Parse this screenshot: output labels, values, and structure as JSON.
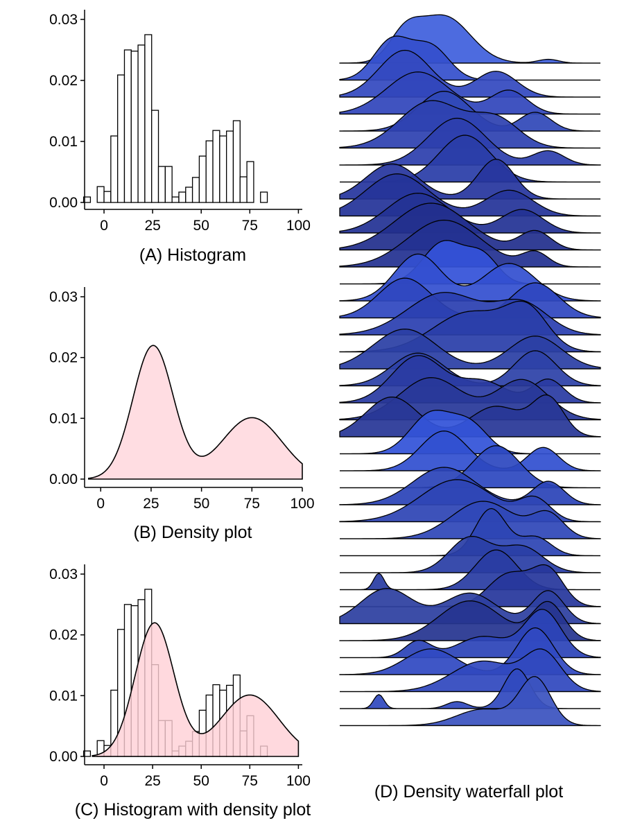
{
  "chart_data": [
    {
      "type": "bar",
      "title": "(A) Histogram",
      "xlabel": "",
      "ylabel": "",
      "xlim": [
        -10,
        102
      ],
      "ylim": [
        0,
        0.03
      ],
      "x_ticks": [
        0,
        25,
        50,
        75,
        100
      ],
      "y_ticks": [
        0.0,
        0.01,
        0.02,
        0.03
      ],
      "x_tick_labels": [
        "0",
        "25",
        "50",
        "75",
        "100"
      ],
      "y_tick_labels": [
        "0.00",
        "0.01",
        "0.02",
        "0.03"
      ],
      "bin_width": 3.5,
      "bin_start": -10.5,
      "values": [
        0.0009,
        0,
        0.0026,
        0.0018,
        0.0109,
        0.0209,
        0.025,
        0.0248,
        0.0258,
        0.0275,
        0.0151,
        0.0059,
        0.0059,
        0.0009,
        0.0017,
        0.0025,
        0.0041,
        0.0076,
        0.0101,
        0.0118,
        0.0109,
        0.0117,
        0.0134,
        0.0042,
        0.0067,
        0,
        0.0017
      ],
      "bar_fill": "#ffffff",
      "bar_stroke": "#000000",
      "grid": false
    },
    {
      "type": "area",
      "title": "(B) Density plot",
      "xlabel": "",
      "ylabel": "",
      "xlim": [
        -8,
        100
      ],
      "ylim": [
        0,
        0.03
      ],
      "x_ticks": [
        0,
        25,
        50,
        75,
        100
      ],
      "y_ticks": [
        0.0,
        0.01,
        0.02,
        0.03
      ],
      "x_tick_labels": [
        "0",
        "25",
        "50",
        "75",
        "100"
      ],
      "y_tick_labels": [
        "0.00",
        "0.01",
        "0.02",
        "0.03"
      ],
      "density": {
        "components": [
          {
            "weight": 0.55,
            "mean": 26,
            "sd": 10
          },
          {
            "weight": 0.38,
            "mean": 75,
            "sd": 15
          }
        ]
      },
      "fill": "#ffdde2",
      "stroke": "#000000",
      "grid": false
    },
    {
      "type": "bar",
      "title": "(C) Histogram with density plot",
      "xlabel": "",
      "ylabel": "",
      "xlim": [
        -10,
        102
      ],
      "ylim": [
        0,
        0.03
      ],
      "x_ticks": [
        0,
        25,
        50,
        75,
        100
      ],
      "y_ticks": [
        0.0,
        0.01,
        0.02,
        0.03
      ],
      "x_tick_labels": [
        "0",
        "25",
        "50",
        "75",
        "100"
      ],
      "y_tick_labels": [
        "0.00",
        "0.01",
        "0.02",
        "0.03"
      ],
      "bin_width": 3.5,
      "bin_start": -10.5,
      "values": [
        0.0009,
        0,
        0.0026,
        0.0018,
        0.0109,
        0.0209,
        0.025,
        0.0248,
        0.0258,
        0.0275,
        0.0151,
        0.0059,
        0.0059,
        0.0009,
        0.0017,
        0.0025,
        0.0041,
        0.0076,
        0.0101,
        0.0118,
        0.0109,
        0.0117,
        0.0134,
        0.0042,
        0.0067,
        0,
        0.0017
      ],
      "density": {
        "components": [
          {
            "weight": 0.55,
            "mean": 26,
            "sd": 10
          },
          {
            "weight": 0.38,
            "mean": 75,
            "sd": 15
          }
        ]
      },
      "bar_fill": "#ffffff",
      "bar_stroke": "#000000",
      "density_fill": "#ffd0d6",
      "density_fill_opacity": 0.8,
      "grid": false
    },
    {
      "type": "area",
      "subtype": "ridgeline",
      "title": "(D) Density waterfall plot",
      "xlabel": "",
      "ylabel": "",
      "xlim": [
        0,
        100
      ],
      "row_count": 40,
      "axes": false,
      "ridges": [
        {
          "peaks": [
            [
              0.25,
              0.06,
              0.55
            ],
            [
              0.4,
              0.1,
              1.0
            ],
            [
              0.8,
              0.04,
              0.08
            ]
          ],
          "fill": "#4060dd"
        },
        {
          "peaks": [
            [
              0.2,
              0.07,
              0.85
            ],
            [
              0.35,
              0.07,
              0.7
            ]
          ],
          "fill": "#3550cc"
        },
        {
          "peaks": [
            [
              0.25,
              0.1,
              1.0
            ],
            [
              0.6,
              0.08,
              0.55
            ]
          ],
          "fill": "#3449c0"
        },
        {
          "peaks": [
            [
              0.3,
              0.12,
              0.9
            ],
            [
              0.65,
              0.07,
              0.5
            ]
          ],
          "fill": "#3246bb"
        },
        {
          "peaks": [
            [
              0.4,
              0.1,
              0.85
            ],
            [
              0.75,
              0.06,
              0.4
            ]
          ],
          "fill": "#3048b8"
        },
        {
          "peaks": [
            [
              0.35,
              0.12,
              1.0
            ],
            [
              0.6,
              0.09,
              0.6
            ]
          ],
          "fill": "#2e42b0"
        },
        {
          "peaks": [
            [
              0.45,
              0.11,
              1.0
            ],
            [
              0.8,
              0.06,
              0.3
            ]
          ],
          "fill": "#2d40ad"
        },
        {
          "peaks": [
            [
              0.48,
              0.1,
              1.0
            ]
          ],
          "fill": "#2a3da8"
        },
        {
          "peaks": [
            [
              0.2,
              0.1,
              0.75
            ],
            [
              0.6,
              0.07,
              0.85
            ]
          ],
          "fill": "#27369e"
        },
        {
          "peaks": [
            [
              0.22,
              0.12,
              0.9
            ],
            [
              0.65,
              0.09,
              0.55
            ]
          ],
          "fill": "#253499"
        },
        {
          "peaks": [
            [
              0.3,
              0.12,
              0.85
            ],
            [
              0.7,
              0.08,
              0.5
            ]
          ],
          "fill": "#243394"
        },
        {
          "peaks": [
            [
              0.35,
              0.14,
              1.0
            ],
            [
              0.75,
              0.06,
              0.4
            ]
          ],
          "fill": "#222f8d"
        },
        {
          "peaks": [
            [
              0.4,
              0.14,
              1.0
            ],
            [
              0.75,
              0.05,
              0.3
            ]
          ],
          "fill": "#233191"
        },
        {
          "peaks": [
            [
              0.4,
              0.08,
              0.9
            ],
            [
              0.55,
              0.06,
              0.55
            ]
          ],
          "fill": "#3452d8"
        },
        {
          "peaks": [
            [
              0.3,
              0.09,
              1.0
            ],
            [
              0.65,
              0.1,
              0.8
            ]
          ],
          "fill": "#3450d0"
        },
        {
          "peaks": [
            [
              0.25,
              0.1,
              0.85
            ],
            [
              0.75,
              0.09,
              0.75
            ]
          ],
          "fill": "#2f47c0"
        },
        {
          "peaks": [
            [
              0.4,
              0.14,
              0.9
            ],
            [
              0.7,
              0.1,
              0.65
            ]
          ],
          "fill": "#2b40b0"
        },
        {
          "peaks": [
            [
              0.5,
              0.14,
              0.85
            ],
            [
              0.72,
              0.08,
              0.8
            ]
          ],
          "fill": "#2a3ea9"
        },
        {
          "peaks": [
            [
              0.25,
              0.12,
              0.85
            ],
            [
              0.75,
              0.1,
              0.7
            ]
          ],
          "fill": "#2b3fa5"
        },
        {
          "peaks": [
            [
              0.3,
              0.1,
              0.7
            ],
            [
              0.75,
              0.08,
              0.75
            ]
          ],
          "fill": "#2d42a8"
        },
        {
          "peaks": [
            [
              0.3,
              0.1,
              1.0
            ],
            [
              0.55,
              0.09,
              0.45
            ],
            [
              0.8,
              0.06,
              0.5
            ]
          ],
          "fill": "#2a3ba3"
        },
        {
          "peaks": [
            [
              0.35,
              0.12,
              0.9
            ],
            [
              0.7,
              0.1,
              0.85
            ]
          ],
          "fill": "#283899"
        },
        {
          "peaks": [
            [
              0.2,
              0.1,
              0.85
            ],
            [
              0.6,
              0.1,
              0.65
            ],
            [
              0.8,
              0.06,
              0.8
            ]
          ],
          "fill": "#283797"
        },
        {
          "peaks": [
            [
              0.35,
              0.08,
              0.85
            ],
            [
              0.5,
              0.07,
              0.6
            ]
          ],
          "fill": "#3353d8"
        },
        {
          "peaks": [
            [
              0.4,
              0.09,
              0.85
            ],
            [
              0.78,
              0.06,
              0.5
            ]
          ],
          "fill": "#3150d0"
        },
        {
          "peaks": [
            [
              0.6,
              0.09,
              0.9
            ]
          ],
          "fill": "#2d48c0"
        },
        {
          "peaks": [
            [
              0.4,
              0.12,
              0.8
            ],
            [
              0.8,
              0.06,
              0.5
            ]
          ],
          "fill": "#2b44b8"
        },
        {
          "peaks": [
            [
              0.45,
              0.14,
              0.9
            ],
            [
              0.75,
              0.06,
              0.45
            ]
          ],
          "fill": "#2e45b5"
        },
        {
          "peaks": [
            [
              0.55,
              0.12,
              0.8
            ],
            [
              0.8,
              0.06,
              0.5
            ]
          ],
          "fill": "#2f47b8"
        },
        {
          "peaks": [
            [
              0.58,
              0.06,
              1.0
            ],
            [
              0.75,
              0.06,
              0.4
            ]
          ],
          "fill": "#2d45b4"
        },
        {
          "peaks": [
            [
              0.5,
              0.08,
              0.75
            ],
            [
              0.7,
              0.08,
              0.55
            ]
          ],
          "fill": "#2a3ea6"
        },
        {
          "peaks": [
            [
              0.15,
              0.02,
              0.35
            ],
            [
              0.6,
              0.08,
              0.85
            ]
          ],
          "fill": "#293ca3"
        },
        {
          "peaks": [
            [
              0.65,
              0.08,
              0.7
            ],
            [
              0.8,
              0.06,
              0.75
            ]
          ],
          "fill": "#27379c"
        },
        {
          "peaks": [
            [
              0.18,
              0.1,
              0.75
            ],
            [
              0.5,
              0.1,
              0.65
            ],
            [
              0.8,
              0.06,
              0.7
            ]
          ],
          "fill": "#2d40a0"
        },
        {
          "peaks": [
            [
              0.5,
              0.12,
              0.85
            ],
            [
              0.8,
              0.06,
              0.8
            ]
          ],
          "fill": "#263590"
        },
        {
          "peaks": [
            [
              0.3,
              0.05,
              0.35
            ],
            [
              0.55,
              0.1,
              0.45
            ],
            [
              0.78,
              0.07,
              1.0
            ]
          ],
          "fill": "#2c44b8"
        },
        {
          "peaks": [
            [
              0.35,
              0.1,
              0.55
            ],
            [
              0.75,
              0.07,
              1.0
            ]
          ],
          "fill": "#3049c2"
        },
        {
          "peaks": [
            [
              0.55,
              0.12,
              0.65
            ],
            [
              0.78,
              0.07,
              0.8
            ]
          ],
          "fill": "#3048be"
        },
        {
          "peaks": [
            [
              0.15,
              0.02,
              0.3
            ],
            [
              0.45,
              0.04,
              0.15
            ],
            [
              0.68,
              0.05,
              0.85
            ]
          ],
          "fill": "#3049be"
        },
        {
          "peaks": [
            [
              0.55,
              0.1,
              0.35
            ],
            [
              0.75,
              0.06,
              1.0
            ]
          ],
          "fill": "#3b53c0"
        }
      ]
    }
  ]
}
